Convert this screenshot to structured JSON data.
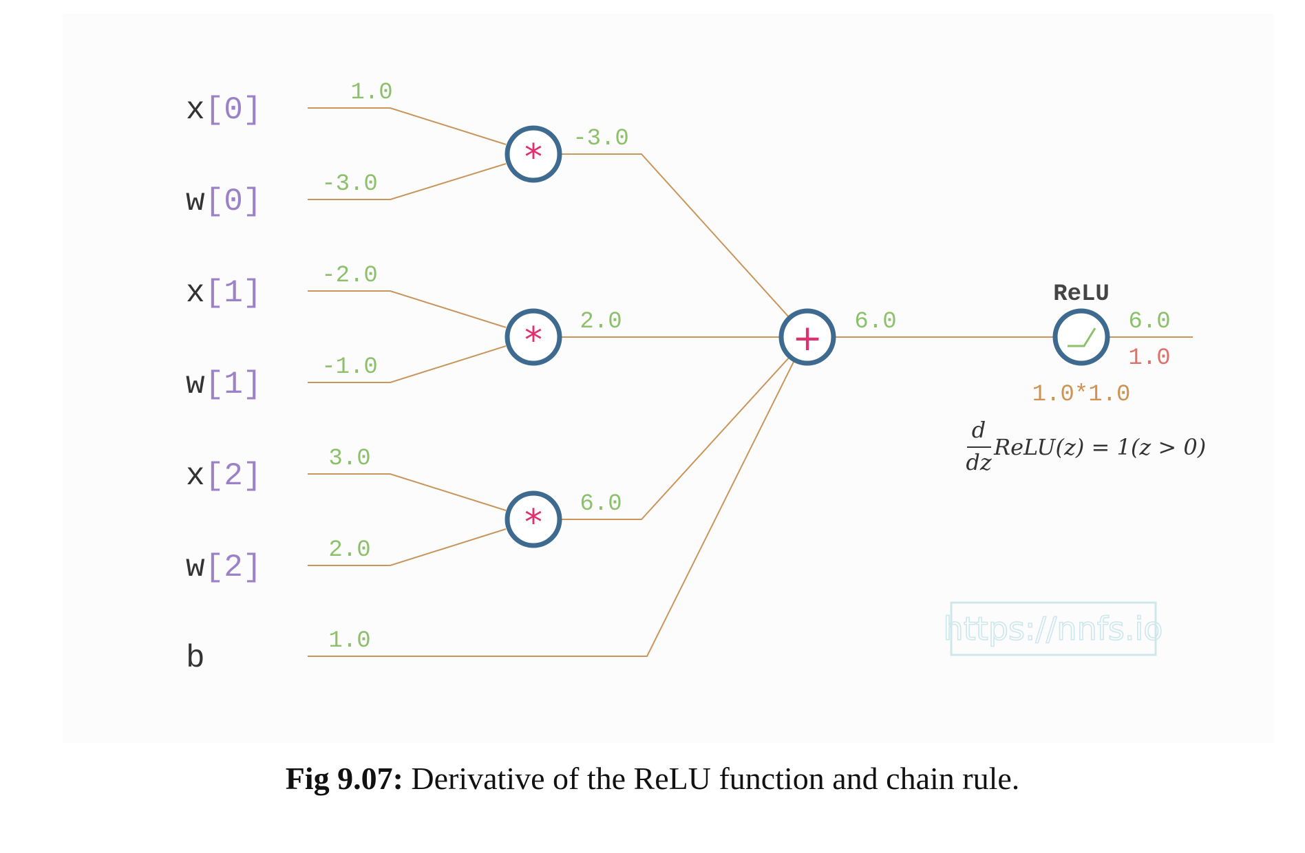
{
  "inputs": [
    {
      "name": "x",
      "index": "[0]",
      "value": "1.0"
    },
    {
      "name": "w",
      "index": "[0]",
      "value": "-3.0"
    },
    {
      "name": "x",
      "index": "[1]",
      "value": "-2.0"
    },
    {
      "name": "w",
      "index": "[1]",
      "value": "-1.0"
    },
    {
      "name": "x",
      "index": "[2]",
      "value": "3.0"
    },
    {
      "name": "w",
      "index": "[2]",
      "value": "2.0"
    },
    {
      "name": "b",
      "index": "",
      "value": "1.0"
    }
  ],
  "products": [
    {
      "op": "*",
      "output": "-3.0"
    },
    {
      "op": "*",
      "output": "2.0"
    },
    {
      "op": "*",
      "output": "6.0"
    }
  ],
  "sum": {
    "op": "+",
    "output": "6.0"
  },
  "relu": {
    "label": "ReLU",
    "output": "6.0",
    "gradient": "1.0",
    "chain": "1.0*1.0",
    "formula": {
      "numerator": "d",
      "denominator": "dz",
      "expression": "ReLU(z) = 1(z > 0)"
    }
  },
  "watermark": "https://nnfs.io",
  "caption": {
    "prefix": "Fig 9.07:",
    "text": "Derivative of the ReLU function and chain rule."
  },
  "colors": {
    "wire": "#c8955a",
    "node": "#3d6a8e",
    "value": "#8cc06a",
    "gradient": "#e0706a",
    "operator": "#e0306e",
    "index": "#9b82c8"
  }
}
